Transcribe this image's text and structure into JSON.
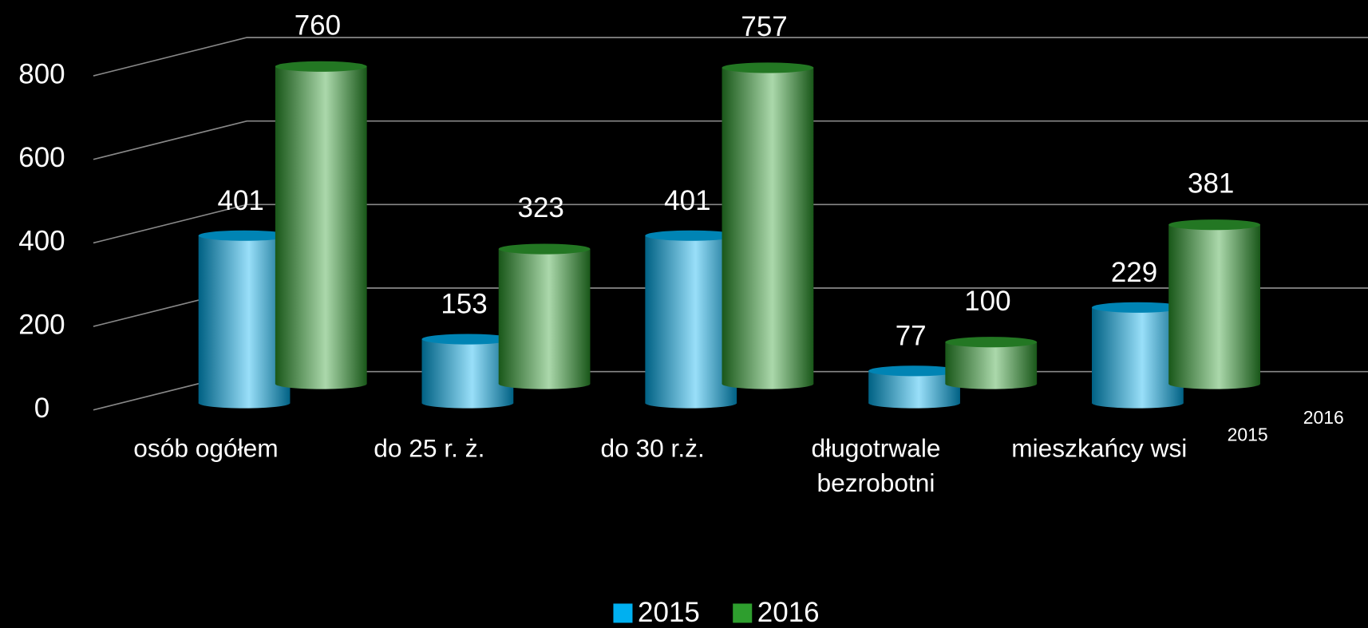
{
  "chart_data": {
    "type": "bar3d",
    "categories": [
      "osób ogółem",
      "do 25 r. ż.",
      "do 30 r.ż.",
      [
        "długotrwale",
        "bezrobotni"
      ],
      "mieszkańcy wsi"
    ],
    "series": [
      {
        "name": "2015",
        "color": "#00b0f0",
        "values": [
          401,
          153,
          401,
          77,
          229
        ]
      },
      {
        "name": "2016",
        "color": "#2e9e2e",
        "values": [
          760,
          323,
          757,
          100,
          381
        ]
      }
    ],
    "ylim": [
      0,
      800
    ],
    "yticks": [
      0,
      200,
      400,
      600,
      800
    ],
    "grid": true,
    "legend": "bottom"
  }
}
